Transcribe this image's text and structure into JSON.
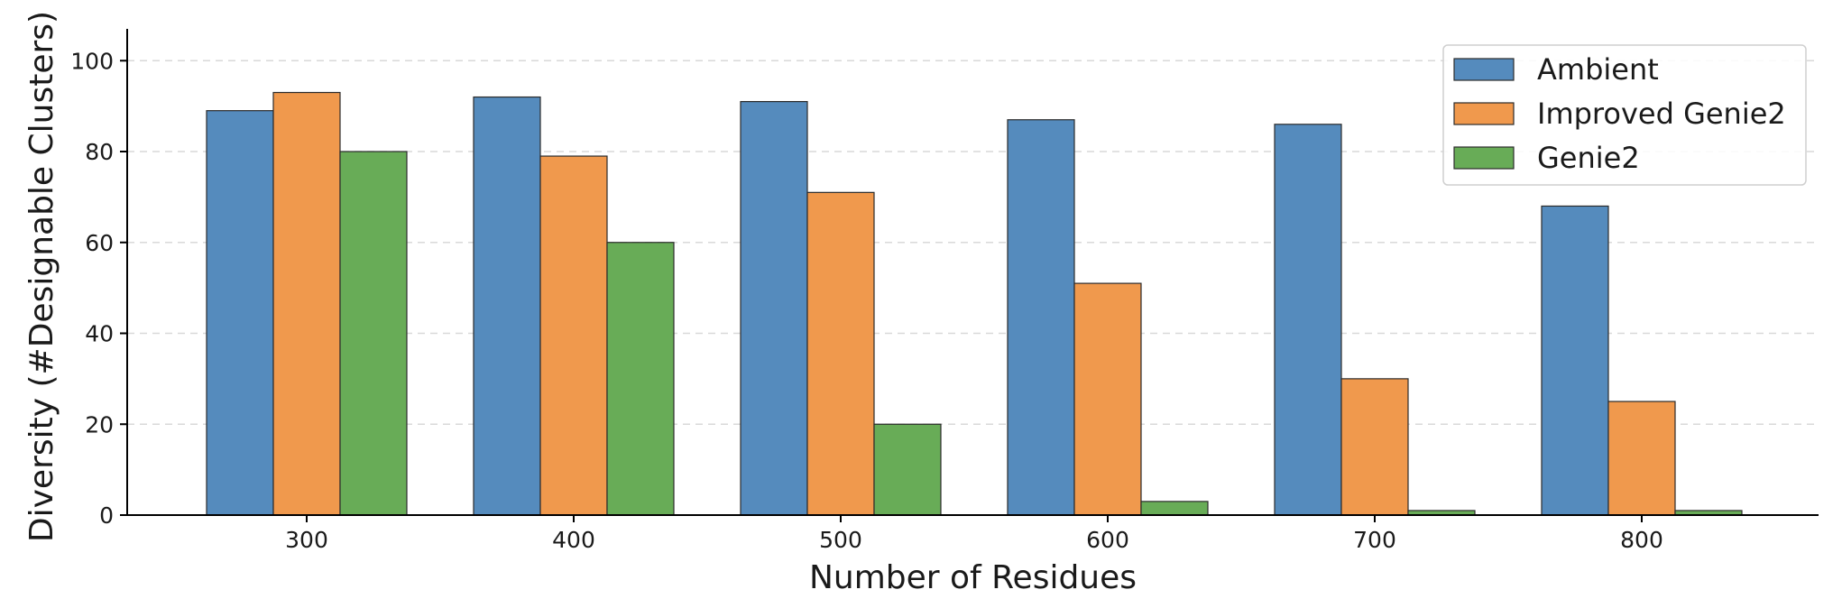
{
  "chart_data": {
    "type": "bar",
    "title": "",
    "xlabel": "Number of Residues",
    "ylabel": "Diversity (#Designable Clusters)",
    "categories": [
      "300",
      "400",
      "500",
      "600",
      "700",
      "800"
    ],
    "ylim": [
      0,
      107
    ],
    "yticks": [
      0,
      20,
      40,
      60,
      80,
      100
    ],
    "grid": "horizontal-dashed",
    "legend_position": "top-right",
    "series": [
      {
        "name": "Ambient",
        "color": "#558bbd",
        "values": [
          89,
          92,
          91,
          87,
          86,
          68
        ]
      },
      {
        "name": "Improved Genie2",
        "color": "#f0994d",
        "values": [
          93,
          79,
          71,
          51,
          30,
          25
        ]
      },
      {
        "name": "Genie2",
        "color": "#68ac57",
        "values": [
          80,
          60,
          20,
          3,
          1,
          1
        ]
      }
    ]
  }
}
